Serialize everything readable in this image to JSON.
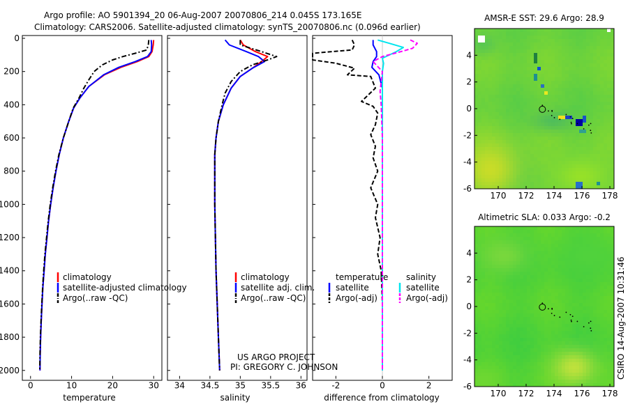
{
  "header": {
    "title_line1": "Argo profile: AO 5901394_20 06-Aug-2007 20070806_214 0.045S 173.165E",
    "title_line2": "Climatology: CARS2006. Satellite-adjusted climatology: synTS_20070806.nc (0.096d earlier)"
  },
  "side_stamp": "CSIRO 14-Aug-2007 10:31:46",
  "credit": {
    "line1": "US ARGO PROJECT",
    "line2": "PI: GREGORY C. JOHNSON"
  },
  "colors": {
    "climatology": "#ff0000",
    "satellite": "#0000ff",
    "argo": "#000000",
    "salinity_satellite": "#00e5ee",
    "salinity_argo": "#ff00ff",
    "sst_map_base": "#6cd23c",
    "sla_map_base": "#52d236"
  },
  "chart_data": [
    {
      "id": "temperature",
      "type": "line",
      "xlabel": "temperature",
      "ylabel": "",
      "xlim": [
        -2,
        32
      ],
      "ylim": [
        2050,
        0
      ],
      "xticks": [
        0,
        10,
        20,
        30
      ],
      "yticks": [
        0,
        200,
        400,
        600,
        800,
        1000,
        1200,
        1400,
        1600,
        1800,
        2000
      ],
      "y_inverted": true,
      "legend": {
        "position": "lower-right",
        "entries": [
          "climatology",
          "satellite-adjusted climatology",
          "Argo(..raw -QC)"
        ]
      },
      "series": [
        {
          "name": "climatology",
          "color": "#ff0000",
          "dash": "solid",
          "points": [
            [
              30.0,
              10
            ],
            [
              29.9,
              40
            ],
            [
              29.6,
              80
            ],
            [
              28.8,
              110
            ],
            [
              26.0,
              140
            ],
            [
              22.0,
              175
            ],
            [
              18.0,
              220
            ],
            [
              14.2,
              290
            ],
            [
              12.0,
              360
            ],
            [
              10.5,
              420
            ],
            [
              9.3,
              500
            ],
            [
              8.0,
              600
            ],
            [
              7.0,
              700
            ],
            [
              6.2,
              800
            ],
            [
              5.5,
              900
            ],
            [
              4.9,
              1000
            ],
            [
              4.4,
              1100
            ],
            [
              4.0,
              1200
            ],
            [
              3.6,
              1300
            ],
            [
              3.3,
              1400
            ],
            [
              3.0,
              1500
            ],
            [
              2.8,
              1600
            ],
            [
              2.6,
              1700
            ],
            [
              2.45,
              1800
            ],
            [
              2.35,
              1900
            ],
            [
              2.3,
              2000
            ]
          ]
        },
        {
          "name": "satellite-adjusted climatology",
          "color": "#0000ff",
          "dash": "solid",
          "points": [
            [
              29.4,
              10
            ],
            [
              29.5,
              40
            ],
            [
              29.4,
              80
            ],
            [
              28.5,
              110
            ],
            [
              25.5,
              140
            ],
            [
              21.5,
              175
            ],
            [
              17.8,
              220
            ],
            [
              14.2,
              290
            ],
            [
              12.0,
              360
            ],
            [
              10.5,
              420
            ],
            [
              9.3,
              500
            ],
            [
              8.0,
              600
            ],
            [
              7.0,
              700
            ],
            [
              6.2,
              800
            ],
            [
              5.5,
              900
            ],
            [
              4.9,
              1000
            ],
            [
              4.4,
              1100
            ],
            [
              4.0,
              1200
            ],
            [
              3.6,
              1300
            ],
            [
              3.3,
              1400
            ],
            [
              3.0,
              1500
            ],
            [
              2.8,
              1600
            ],
            [
              2.6,
              1700
            ],
            [
              2.45,
              1800
            ],
            [
              2.35,
              1900
            ],
            [
              2.3,
              2000
            ]
          ]
        },
        {
          "name": "Argo(..raw -QC)",
          "color": "#000000",
          "dash": "dashdot",
          "points": [
            [
              28.8,
              10
            ],
            [
              28.7,
              40
            ],
            [
              28.3,
              70
            ],
            [
              25.5,
              90
            ],
            [
              22.5,
              110
            ],
            [
              20.0,
              130
            ],
            [
              17.5,
              160
            ],
            [
              15.5,
              200
            ],
            [
              14.2,
              250
            ],
            [
              13.0,
              300
            ],
            [
              11.8,
              360
            ],
            [
              10.4,
              420
            ],
            [
              9.3,
              500
            ],
            [
              8.0,
              600
            ],
            [
              6.9,
              700
            ],
            [
              6.1,
              800
            ],
            [
              5.4,
              900
            ],
            [
              4.8,
              1000
            ],
            [
              4.3,
              1100
            ],
            [
              3.9,
              1200
            ],
            [
              3.5,
              1300
            ],
            [
              3.2,
              1400
            ],
            [
              2.95,
              1500
            ],
            [
              2.75,
              1600
            ],
            [
              2.55,
              1700
            ],
            [
              2.4,
              1800
            ],
            [
              2.3,
              1900
            ],
            [
              2.25,
              2000
            ]
          ]
        }
      ]
    },
    {
      "id": "salinity",
      "type": "line",
      "xlabel": "salinity",
      "ylabel": "",
      "xlim": [
        33.8,
        36.1
      ],
      "ylim": [
        2050,
        0
      ],
      "xticks": [
        34,
        34.5,
        35,
        35.5,
        36
      ],
      "xtick_labels": [
        "34",
        "34.5",
        "35",
        "35.5",
        "36"
      ],
      "y_inverted": true,
      "legend": {
        "position": "lower-right",
        "entries": [
          "climatology",
          "satellite adj. clim.",
          "Argo(..raw -QC)"
        ]
      },
      "series": [
        {
          "name": "climatology",
          "color": "#ff0000",
          "dash": "solid",
          "points": [
            [
              35.0,
              10
            ],
            [
              35.05,
              40
            ],
            [
              35.25,
              80
            ],
            [
              35.45,
              110
            ],
            [
              35.35,
              140
            ],
            [
              35.2,
              180
            ],
            [
              35.0,
              230
            ],
            [
              34.85,
              300
            ],
            [
              34.72,
              400
            ],
            [
              34.64,
              500
            ],
            [
              34.6,
              600
            ],
            [
              34.58,
              700
            ],
            [
              34.58,
              800
            ],
            [
              34.58,
              1000
            ],
            [
              34.59,
              1200
            ],
            [
              34.6,
              1400
            ],
            [
              34.62,
              1600
            ],
            [
              34.64,
              1800
            ],
            [
              34.66,
              2000
            ]
          ]
        },
        {
          "name": "satellite adj. clim.",
          "color": "#0000ff",
          "dash": "solid",
          "points": [
            [
              34.75,
              10
            ],
            [
              34.82,
              40
            ],
            [
              35.1,
              80
            ],
            [
              35.3,
              110
            ],
            [
              35.4,
              140
            ],
            [
              35.2,
              180
            ],
            [
              35.0,
              230
            ],
            [
              34.85,
              300
            ],
            [
              34.72,
              400
            ],
            [
              34.64,
              500
            ],
            [
              34.6,
              600
            ],
            [
              34.58,
              700
            ],
            [
              34.58,
              800
            ],
            [
              34.58,
              1000
            ],
            [
              34.59,
              1200
            ],
            [
              34.6,
              1400
            ],
            [
              34.62,
              1600
            ],
            [
              34.64,
              1800
            ],
            [
              34.66,
              2000
            ]
          ]
        },
        {
          "name": "Argo(..raw -QC)",
          "color": "#000000",
          "dash": "dashdot",
          "points": [
            [
              35.0,
              10
            ],
            [
              35.0,
              40
            ],
            [
              35.35,
              80
            ],
            [
              35.6,
              110
            ],
            [
              35.45,
              130
            ],
            [
              35.2,
              160
            ],
            [
              35.0,
              200
            ],
            [
              34.85,
              260
            ],
            [
              34.75,
              330
            ],
            [
              34.7,
              400
            ],
            [
              34.64,
              500
            ],
            [
              34.6,
              600
            ],
            [
              34.58,
              700
            ],
            [
              34.58,
              800
            ],
            [
              34.58,
              1000
            ],
            [
              34.59,
              1200
            ],
            [
              34.6,
              1400
            ],
            [
              34.62,
              1600
            ],
            [
              34.64,
              1800
            ],
            [
              34.66,
              2000
            ]
          ]
        }
      ]
    },
    {
      "id": "difference",
      "type": "line",
      "xlabel": "difference from climatology",
      "ylabel": "",
      "xlim": [
        -3,
        3
      ],
      "ylim": [
        2050,
        0
      ],
      "xticks": [
        -2,
        0,
        2
      ],
      "y_inverted": true,
      "legend": {
        "position": "lower-center",
        "groups": [
          {
            "title": "temperature",
            "entries": [
              "satellite",
              "Argo(-adj)"
            ]
          },
          {
            "title": "salinity",
            "entries": [
              "satellite",
              "Argo(-adj)"
            ]
          }
        ]
      },
      "series": [
        {
          "name": "temperature satellite",
          "color": "#0000ff",
          "dash": "solid",
          "points": [
            [
              -0.4,
              10
            ],
            [
              -0.4,
              40
            ],
            [
              -0.25,
              80
            ],
            [
              -0.25,
              110
            ],
            [
              -0.4,
              140
            ],
            [
              -0.45,
              175
            ],
            [
              -0.15,
              220
            ],
            [
              0.0,
              300
            ],
            [
              0.0,
              500
            ],
            [
              0.0,
              1000
            ],
            [
              0.0,
              1500
            ],
            [
              0.0,
              2000
            ]
          ]
        },
        {
          "name": "temperature Argo(-adj)",
          "color": "#000000",
          "dash": "dashed",
          "points": [
            [
              -1.3,
              10
            ],
            [
              -1.2,
              40
            ],
            [
              -1.3,
              70
            ],
            [
              -3.0,
              90
            ],
            [
              -3.0,
              115
            ],
            [
              -3.0,
              130
            ],
            [
              -2.0,
              150
            ],
            [
              -1.2,
              180
            ],
            [
              -1.5,
              220
            ],
            [
              -0.5,
              230
            ],
            [
              -0.3,
              300
            ],
            [
              -0.6,
              340
            ],
            [
              -0.9,
              380
            ],
            [
              -0.4,
              410
            ],
            [
              -0.2,
              450
            ],
            [
              -0.3,
              520
            ],
            [
              -0.5,
              580
            ],
            [
              -0.3,
              650
            ],
            [
              -0.4,
              720
            ],
            [
              -0.2,
              800
            ],
            [
              -0.5,
              900
            ],
            [
              -0.2,
              1000
            ],
            [
              -0.3,
              1080
            ],
            [
              -0.1,
              1200
            ],
            [
              -0.2,
              1300
            ],
            [
              -0.05,
              1400
            ],
            [
              0.0,
              1600
            ],
            [
              0.0,
              2000
            ]
          ]
        },
        {
          "name": "salinity satellite",
          "color": "#00e5ee",
          "dash": "solid",
          "points": [
            [
              -0.2,
              10
            ],
            [
              0.3,
              30
            ],
            [
              0.9,
              55
            ],
            [
              0.6,
              80
            ],
            [
              0.0,
              120
            ],
            [
              0.05,
              150
            ],
            [
              0.0,
              200
            ],
            [
              0.0,
              400
            ],
            [
              0.0,
              800
            ],
            [
              0.0,
              1200
            ],
            [
              0.0,
              1600
            ],
            [
              0.0,
              2000
            ]
          ]
        },
        {
          "name": "salinity Argo(-adj)",
          "color": "#ff00ff",
          "dash": "dashed",
          "points": [
            [
              1.2,
              10
            ],
            [
              1.5,
              30
            ],
            [
              1.3,
              60
            ],
            [
              0.8,
              80
            ],
            [
              0.0,
              110
            ],
            [
              -0.4,
              140
            ],
            [
              -0.2,
              170
            ],
            [
              0.0,
              200
            ],
            [
              -0.1,
              320
            ],
            [
              -0.05,
              400
            ],
            [
              0.0,
              600
            ],
            [
              0.0,
              1000
            ],
            [
              0.0,
              2000
            ]
          ]
        }
      ]
    },
    {
      "id": "sst_map",
      "type": "heatmap",
      "title": "AMSR-E SST: 29.6 Argo: 28.9",
      "xlim": [
        168.3,
        178.3
      ],
      "ylim": [
        -6,
        6
      ],
      "xticks": [
        170,
        172,
        174,
        176,
        178
      ],
      "yticks": [
        -6,
        -4,
        -2,
        0,
        2,
        4
      ],
      "argo_position": [
        173.165,
        -0.045
      ]
    },
    {
      "id": "sla_map",
      "type": "heatmap",
      "title": "Altimetric SLA: 0.033 Argo: -0.2",
      "xlim": [
        168.3,
        178.3
      ],
      "ylim": [
        -6,
        6
      ],
      "xticks": [
        170,
        172,
        174,
        176,
        178
      ],
      "yticks": [
        -6,
        -4,
        -2,
        0,
        2,
        4
      ],
      "argo_position": [
        173.165,
        -0.045
      ]
    }
  ]
}
